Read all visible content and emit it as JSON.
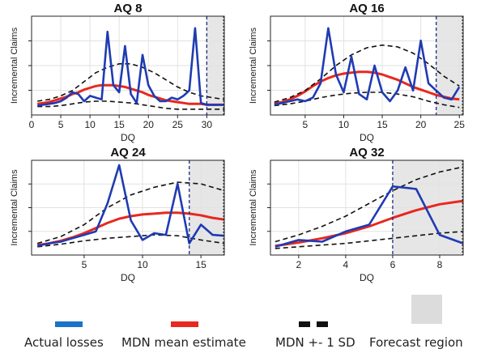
{
  "colors": {
    "actual": "#1f3bb3",
    "mean": "#e8281e",
    "sd": "#111111",
    "forecast": "#e6e6e6",
    "legend_actual": "#1a73c8",
    "legend_mean": "#e8281e",
    "legend_sd": "#111111",
    "legend_forecast": "#dcdcdc"
  },
  "legend": {
    "actual": "Actual losses",
    "mean": "MDN mean estimate",
    "sd": "MDN +- 1 SD",
    "forecast": "Forecast region"
  },
  "chart_data": [
    {
      "type": "line",
      "title": "AQ 8",
      "xlabel": "DQ",
      "ylabel": "Incremental Claims",
      "xlim": [
        0,
        33
      ],
      "ylim": [
        0,
        1
      ],
      "xticks": [
        0,
        5,
        10,
        15,
        20,
        25,
        30
      ],
      "forecast_start": 30,
      "forecast_end": 33,
      "grid": true,
      "series": [
        {
          "name": "Actual losses",
          "x": [
            1,
            2,
            3,
            4,
            5,
            6,
            7,
            8,
            9,
            10,
            11,
            12,
            13,
            14,
            15,
            16,
            17,
            18,
            19,
            20,
            21,
            22,
            23,
            24,
            25,
            26,
            27,
            28,
            29,
            30,
            31,
            32,
            33
          ],
          "values": [
            0.05,
            0.06,
            0.07,
            0.08,
            0.1,
            0.14,
            0.2,
            0.18,
            0.1,
            0.16,
            0.14,
            0.12,
            0.88,
            0.28,
            0.2,
            0.72,
            0.18,
            0.08,
            0.62,
            0.28,
            0.16,
            0.1,
            0.1,
            0.14,
            0.12,
            0.16,
            0.22,
            0.92,
            0.08,
            0.06,
            0.06,
            0.06,
            0.06
          ]
        },
        {
          "name": "MDN mean estimate",
          "x": [
            1,
            2,
            3,
            4,
            5,
            6,
            7,
            8,
            9,
            10,
            11,
            12,
            13,
            14,
            15,
            16,
            17,
            18,
            19,
            20,
            21,
            22,
            23,
            24,
            25,
            26,
            27,
            28,
            29,
            30,
            31,
            32,
            33
          ],
          "values": [
            0.07,
            0.08,
            0.09,
            0.11,
            0.13,
            0.15,
            0.18,
            0.2,
            0.23,
            0.25,
            0.27,
            0.28,
            0.28,
            0.28,
            0.27,
            0.26,
            0.24,
            0.22,
            0.2,
            0.17,
            0.15,
            0.13,
            0.11,
            0.1,
            0.09,
            0.08,
            0.07,
            0.07,
            0.07,
            0.06,
            0.06,
            0.06,
            0.06
          ]
        },
        {
          "name": "MDN +1 SD",
          "x": [
            1,
            3,
            5,
            7,
            9,
            11,
            13,
            15,
            17,
            19,
            21,
            23,
            25,
            27,
            29,
            31,
            33
          ],
          "values": [
            0.1,
            0.12,
            0.16,
            0.22,
            0.32,
            0.42,
            0.48,
            0.52,
            0.52,
            0.48,
            0.42,
            0.34,
            0.26,
            0.2,
            0.16,
            0.14,
            0.12
          ]
        },
        {
          "name": "MDN -1 SD",
          "x": [
            1,
            3,
            5,
            7,
            9,
            11,
            13,
            15,
            17,
            19,
            21,
            23,
            25,
            27,
            29,
            31,
            33
          ],
          "values": [
            0.04,
            0.04,
            0.05,
            0.07,
            0.09,
            0.1,
            0.1,
            0.09,
            0.08,
            0.06,
            0.04,
            0.02,
            0.01,
            0.01,
            0.01,
            0.01,
            0.01
          ]
        }
      ]
    },
    {
      "type": "line",
      "title": "AQ 16",
      "xlabel": "DQ",
      "ylabel": "Incremental Claims",
      "xlim": [
        0.5,
        25.5
      ],
      "ylim": [
        0,
        1
      ],
      "xticks": [
        5,
        10,
        15,
        20,
        25
      ],
      "forecast_start": 22,
      "forecast_end": 25.5,
      "grid": true,
      "series": [
        {
          "name": "Actual losses",
          "x": [
            1,
            2,
            3,
            4,
            5,
            6,
            7,
            8,
            9,
            10,
            11,
            12,
            13,
            14,
            15,
            16,
            17,
            18,
            19,
            20,
            21,
            22,
            23,
            24,
            25
          ],
          "values": [
            0.06,
            0.08,
            0.1,
            0.12,
            0.1,
            0.14,
            0.3,
            0.92,
            0.4,
            0.2,
            0.6,
            0.18,
            0.12,
            0.5,
            0.2,
            0.1,
            0.22,
            0.48,
            0.22,
            0.78,
            0.3,
            0.22,
            0.14,
            0.12,
            0.26
          ]
        },
        {
          "name": "MDN mean estimate",
          "x": [
            1,
            2,
            3,
            4,
            5,
            6,
            7,
            8,
            9,
            10,
            11,
            12,
            13,
            14,
            15,
            16,
            17,
            18,
            19,
            20,
            21,
            22,
            23,
            24,
            25
          ],
          "values": [
            0.07,
            0.09,
            0.12,
            0.16,
            0.21,
            0.27,
            0.32,
            0.36,
            0.39,
            0.41,
            0.42,
            0.43,
            0.43,
            0.42,
            0.4,
            0.37,
            0.34,
            0.3,
            0.26,
            0.23,
            0.2,
            0.17,
            0.15,
            0.13,
            0.12
          ]
        },
        {
          "name": "MDN +1 SD",
          "x": [
            1,
            3,
            5,
            7,
            9,
            11,
            13,
            15,
            17,
            19,
            21,
            23,
            25
          ],
          "values": [
            0.09,
            0.14,
            0.22,
            0.35,
            0.5,
            0.62,
            0.7,
            0.73,
            0.71,
            0.64,
            0.52,
            0.38,
            0.27
          ]
        },
        {
          "name": "MDN -1 SD",
          "x": [
            1,
            3,
            5,
            7,
            9,
            11,
            13,
            15,
            17,
            19,
            21,
            23,
            25
          ],
          "values": [
            0.05,
            0.07,
            0.1,
            0.14,
            0.17,
            0.19,
            0.2,
            0.2,
            0.18,
            0.15,
            0.1,
            0.06,
            0.03
          ]
        }
      ]
    },
    {
      "type": "line",
      "title": "AQ 24",
      "xlabel": "DQ",
      "ylabel": "Incremental Claims",
      "xlim": [
        0.5,
        17
      ],
      "ylim": [
        0,
        1
      ],
      "xticks": [
        5,
        10,
        15
      ],
      "forecast_start": 14,
      "forecast_end": 17,
      "grid": true,
      "series": [
        {
          "name": "Actual losses",
          "x": [
            1,
            2,
            3,
            4,
            5,
            6,
            7,
            8,
            9,
            10,
            11,
            12,
            13,
            14,
            15,
            16,
            17
          ],
          "values": [
            0.05,
            0.08,
            0.1,
            0.14,
            0.18,
            0.22,
            0.55,
            1.0,
            0.35,
            0.12,
            0.2,
            0.18,
            0.78,
            0.08,
            0.3,
            0.18,
            0.17
          ]
        },
        {
          "name": "MDN mean estimate",
          "x": [
            1,
            2,
            3,
            4,
            5,
            6,
            7,
            8,
            9,
            10,
            11,
            12,
            13,
            14,
            15,
            16,
            17
          ],
          "values": [
            0.06,
            0.08,
            0.11,
            0.15,
            0.2,
            0.26,
            0.32,
            0.37,
            0.4,
            0.42,
            0.43,
            0.44,
            0.44,
            0.43,
            0.41,
            0.38,
            0.36
          ]
        },
        {
          "name": "MDN +1 SD",
          "x": [
            1,
            3,
            5,
            7,
            9,
            11,
            13,
            15,
            17
          ],
          "values": [
            0.08,
            0.16,
            0.3,
            0.5,
            0.65,
            0.74,
            0.8,
            0.78,
            0.7
          ]
        },
        {
          "name": "MDN -1 SD",
          "x": [
            1,
            3,
            5,
            7,
            9,
            11,
            13,
            15,
            17
          ],
          "values": [
            0.04,
            0.07,
            0.11,
            0.14,
            0.16,
            0.18,
            0.17,
            0.12,
            0.08
          ]
        }
      ]
    },
    {
      "type": "line",
      "title": "AQ 32",
      "xlabel": "DQ",
      "ylabel": "Incremental Claims",
      "xlim": [
        0.8,
        9
      ],
      "ylim": [
        0,
        1
      ],
      "xticks": [
        2,
        4,
        6,
        8
      ],
      "forecast_start": 6,
      "forecast_end": 9,
      "grid": true,
      "series": [
        {
          "name": "Actual losses",
          "x": [
            1,
            2,
            3,
            4,
            5,
            6,
            7,
            8,
            9
          ],
          "values": [
            0.04,
            0.12,
            0.1,
            0.22,
            0.3,
            0.75,
            0.72,
            0.18,
            0.08
          ]
        },
        {
          "name": "MDN mean estimate",
          "x": [
            1,
            2,
            3,
            4,
            5,
            6,
            7,
            8,
            9
          ],
          "values": [
            0.05,
            0.09,
            0.14,
            0.2,
            0.28,
            0.38,
            0.47,
            0.54,
            0.58
          ]
        },
        {
          "name": "MDN +1 SD",
          "x": [
            1,
            2,
            3,
            4,
            5,
            6,
            7,
            8,
            9
          ],
          "values": [
            0.1,
            0.18,
            0.28,
            0.4,
            0.55,
            0.7,
            0.83,
            0.92,
            0.98
          ]
        },
        {
          "name": "MDN -1 SD",
          "x": [
            1,
            2,
            3,
            4,
            5,
            6,
            7,
            8,
            9
          ],
          "values": [
            0.02,
            0.04,
            0.06,
            0.08,
            0.11,
            0.14,
            0.17,
            0.2,
            0.22
          ]
        }
      ]
    }
  ]
}
